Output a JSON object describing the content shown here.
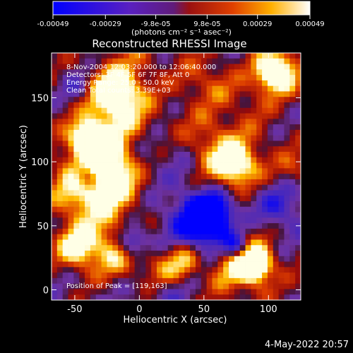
{
  "colorbar": {
    "ticks": [
      "-0.00049",
      "-0.00029",
      "-9.8e-05",
      "9.8e-05",
      "0.00029",
      "0.00049"
    ],
    "tick_values": [
      -0.00049,
      -0.00029,
      -9.8e-05,
      9.8e-05,
      0.00029,
      0.00049
    ],
    "range": [
      -0.00049,
      0.00049
    ],
    "unit_label": "(photons cm⁻² s⁻¹ asec⁻²)"
  },
  "chart_data": {
    "type": "heatmap",
    "title": "Reconstructed RHESSI Image",
    "xlabel": "Heliocentric X (arcsec)",
    "ylabel": "Heliocentric Y (arcsec)",
    "xlim": [
      -68,
      125
    ],
    "ylim": [
      -8,
      185
    ],
    "x_ticks": [
      -50,
      0,
      50,
      100
    ],
    "y_ticks": [
      0,
      50,
      100,
      150
    ],
    "info_lines": [
      "8-Nov-2004 12:03:20.000 to 12:06:40.000",
      "Detectors: 3F 4F 5F 6F 7F 8F, Att 0",
      "Energy Range: 25.0 - 50.0 keV",
      "Clean      Total counts: 3.39E+03"
    ],
    "peak_label": "Position of Peak = [119,163]",
    "peak": [
      119,
      163
    ],
    "colormap": [
      "#0000ff",
      "#5a1fb0",
      "#8a3fb0",
      "#b02020",
      "#e65a00",
      "#ffd000",
      "#ffffff"
    ]
  },
  "footer": {
    "date": "4-May-2022 20:57"
  }
}
